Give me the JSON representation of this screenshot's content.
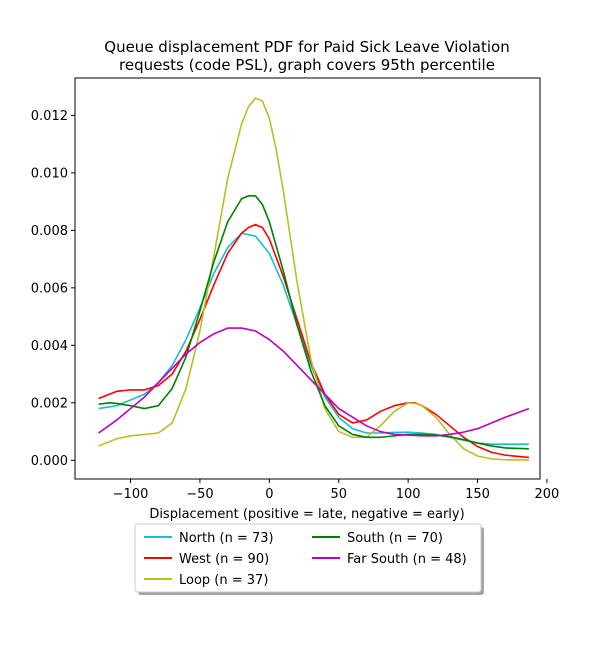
{
  "chart_data": {
    "type": "line",
    "title_line1": "Queue displacement PDF for Paid Sick Leave Violation",
    "title_line2": "requests (code PSL), graph covers 95th percentile",
    "xlabel": "Displacement (positive = late, negative = early)",
    "ylabel": "",
    "xlim": [
      -140,
      195
    ],
    "ylim": [
      -0.00065,
      0.0133
    ],
    "xticks": [
      -100,
      -50,
      0,
      50,
      100,
      150,
      200
    ],
    "xtick_labels": [
      "−100",
      "−50",
      "0",
      "50",
      "100",
      "150",
      "200"
    ],
    "yticks": [
      0.0,
      0.002,
      0.004,
      0.006,
      0.008,
      0.01,
      0.012
    ],
    "ytick_labels": [
      "0.000",
      "0.002",
      "0.004",
      "0.006",
      "0.008",
      "0.010",
      "0.012"
    ],
    "grid": false,
    "legend_position": "below",
    "series": [
      {
        "name": "North (n = 73)",
        "color": "#17becf",
        "x": [
          -123,
          -110,
          -100,
          -90,
          -80,
          -70,
          -60,
          -50,
          -40,
          -30,
          -20,
          -10,
          0,
          10,
          20,
          30,
          40,
          50,
          60,
          70,
          80,
          90,
          100,
          110,
          120,
          130,
          140,
          150,
          160,
          170,
          187
        ],
        "y": [
          0.0018,
          0.0019,
          0.0021,
          0.0023,
          0.0027,
          0.0033,
          0.0042,
          0.0053,
          0.0065,
          0.0074,
          0.0079,
          0.0078,
          0.0072,
          0.0061,
          0.0047,
          0.0033,
          0.0022,
          0.0015,
          0.0011,
          0.00095,
          0.00095,
          0.00097,
          0.00098,
          0.00095,
          0.0009,
          0.0008,
          0.0007,
          0.0006,
          0.00056,
          0.00056,
          0.00056
        ]
      },
      {
        "name": "West (n = 90)",
        "color": "#ff0000",
        "x": [
          -123,
          -110,
          -100,
          -90,
          -80,
          -70,
          -60,
          -50,
          -40,
          -30,
          -20,
          -15,
          -10,
          -5,
          0,
          10,
          20,
          30,
          40,
          50,
          60,
          70,
          80,
          90,
          100,
          105,
          110,
          120,
          130,
          140,
          150,
          160,
          170,
          187
        ],
        "y": [
          0.00215,
          0.0024,
          0.00245,
          0.00245,
          0.0026,
          0.003,
          0.0038,
          0.0049,
          0.0061,
          0.0072,
          0.0079,
          0.0081,
          0.0082,
          0.0081,
          0.0077,
          0.0064,
          0.0049,
          0.0034,
          0.0023,
          0.0016,
          0.0013,
          0.0014,
          0.0017,
          0.0019,
          0.002,
          0.002,
          0.0019,
          0.0016,
          0.0012,
          0.0008,
          0.00048,
          0.00028,
          0.00018,
          0.0001
        ]
      },
      {
        "name": "Loop (n = 37)",
        "color": "#bcbd22",
        "x": [
          -123,
          -110,
          -100,
          -90,
          -80,
          -70,
          -60,
          -50,
          -40,
          -30,
          -20,
          -15,
          -10,
          -5,
          0,
          5,
          10,
          20,
          30,
          40,
          50,
          60,
          70,
          80,
          90,
          100,
          105,
          110,
          120,
          130,
          140,
          150,
          160,
          170,
          187
        ],
        "y": [
          0.0005,
          0.00075,
          0.00085,
          0.0009,
          0.00095,
          0.0013,
          0.0025,
          0.0045,
          0.0071,
          0.0098,
          0.0117,
          0.0123,
          0.0126,
          0.0125,
          0.0119,
          0.0108,
          0.0094,
          0.0062,
          0.0035,
          0.0018,
          0.001,
          0.0008,
          0.0008,
          0.0012,
          0.0017,
          0.002,
          0.00198,
          0.0019,
          0.0015,
          0.0009,
          0.0004,
          0.00015,
          5e-05,
          2e-05,
          1e-05
        ]
      },
      {
        "name": "South (n = 70)",
        "color": "#008000",
        "x": [
          -123,
          -115,
          -110,
          -100,
          -90,
          -80,
          -70,
          -60,
          -50,
          -40,
          -30,
          -20,
          -15,
          -10,
          -5,
          0,
          10,
          20,
          30,
          40,
          50,
          60,
          70,
          80,
          90,
          100,
          110,
          120,
          130,
          140,
          150,
          160,
          170,
          187
        ],
        "y": [
          0.00195,
          0.002,
          0.00198,
          0.0019,
          0.0018,
          0.0019,
          0.0025,
          0.0036,
          0.0052,
          0.0069,
          0.0083,
          0.0091,
          0.0092,
          0.0092,
          0.0089,
          0.0083,
          0.0066,
          0.0047,
          0.0031,
          0.0019,
          0.0012,
          0.0009,
          0.0008,
          0.0008,
          0.00085,
          0.0009,
          0.0009,
          0.00088,
          0.00082,
          0.00072,
          0.0006,
          0.0005,
          0.00043,
          0.0004
        ]
      },
      {
        "name": "Far South (n = 48)",
        "color": "#bf00bf",
        "x": [
          -123,
          -110,
          -100,
          -90,
          -80,
          -70,
          -60,
          -50,
          -40,
          -30,
          -20,
          -10,
          0,
          10,
          20,
          30,
          40,
          50,
          60,
          70,
          80,
          90,
          100,
          110,
          120,
          130,
          140,
          150,
          160,
          170,
          187
        ],
        "y": [
          0.00095,
          0.0014,
          0.0018,
          0.0022,
          0.0027,
          0.0032,
          0.0037,
          0.0041,
          0.0044,
          0.0046,
          0.0046,
          0.0045,
          0.0042,
          0.0038,
          0.0033,
          0.0028,
          0.0023,
          0.0018,
          0.0015,
          0.0012,
          0.001,
          0.0009,
          0.00088,
          0.00085,
          0.00085,
          0.0009,
          0.00098,
          0.0011,
          0.0013,
          0.0015,
          0.0018
        ]
      }
    ]
  }
}
